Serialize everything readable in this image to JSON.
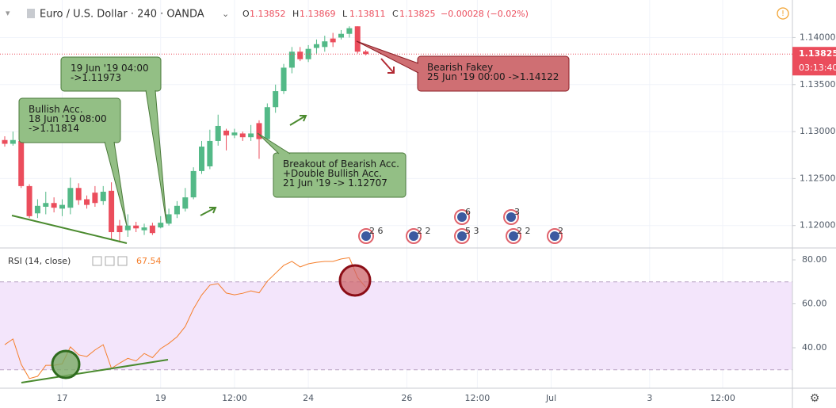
{
  "header": {
    "title": "Euro / U.S. Dollar · 240 · OANDA",
    "ohlc": [
      {
        "key": "O",
        "value": "1.13852"
      },
      {
        "key": "H",
        "value": "1.13869"
      },
      {
        "key": "L",
        "value": "1.13811"
      },
      {
        "key": "C",
        "value": "1.13825"
      }
    ],
    "change": "−0.00028 (−0.02%)"
  },
  "chart_data": [
    {
      "type": "candlestick",
      "up_color": "#53b987",
      "down_color": "#eb4d5c",
      "open": [
        1.1291,
        1.1287,
        1.129,
        1.1242,
        1.1213,
        1.122,
        1.1224,
        1.1218,
        1.1219,
        1.124,
        1.1228,
        1.1235,
        1.1226,
        1.1237,
        1.12,
        1.1195,
        1.12,
        1.1195,
        1.12,
        1.1198,
        1.1202,
        1.1212,
        1.1218,
        1.123,
        1.1258,
        1.1263,
        1.129,
        1.1301,
        1.1296,
        1.1298,
        1.1294,
        1.1309,
        1.1292,
        1.1326,
        1.1343,
        1.1368,
        1.1385,
        1.1377,
        1.1389,
        1.139,
        1.1399,
        1.14,
        1.1404,
        1.1412,
        1.13852
      ],
      "high": [
        1.1295,
        1.13,
        1.1292,
        1.1244,
        1.1228,
        1.1236,
        1.123,
        1.1228,
        1.1251,
        1.1245,
        1.1232,
        1.1242,
        1.1242,
        1.1246,
        1.1206,
        1.1212,
        1.1204,
        1.1202,
        1.1203,
        1.121,
        1.1218,
        1.1226,
        1.124,
        1.1262,
        1.129,
        1.1302,
        1.1318,
        1.1303,
        1.1303,
        1.13,
        1.1307,
        1.1312,
        1.133,
        1.135,
        1.1372,
        1.139,
        1.139,
        1.1392,
        1.1398,
        1.1402,
        1.1405,
        1.1408,
        1.1412,
        1.1412,
        1.13869
      ],
      "low": [
        1.1284,
        1.1285,
        1.124,
        1.1208,
        1.1208,
        1.1212,
        1.1214,
        1.121,
        1.1212,
        1.1222,
        1.1218,
        1.122,
        1.1222,
        1.1185,
        1.1182,
        1.1188,
        1.1193,
        1.119,
        1.119,
        1.1197,
        1.12,
        1.1208,
        1.1215,
        1.1228,
        1.1255,
        1.126,
        1.1285,
        1.128,
        1.1293,
        1.129,
        1.129,
        1.1271,
        1.1288,
        1.132,
        1.134,
        1.1362,
        1.1375,
        1.1374,
        1.1383,
        1.1385,
        1.139,
        1.1398,
        1.14,
        1.1383,
        1.13811
      ],
      "close": [
        1.1287,
        1.1291,
        1.1242,
        1.121,
        1.1221,
        1.1224,
        1.1219,
        1.1222,
        1.124,
        1.1227,
        1.1222,
        1.1224,
        1.1236,
        1.1193,
        1.1193,
        1.12,
        1.1197,
        1.1198,
        1.1192,
        1.1203,
        1.1212,
        1.1221,
        1.123,
        1.1258,
        1.1284,
        1.129,
        1.1306,
        1.1296,
        1.1299,
        1.1294,
        1.1298,
        1.1292,
        1.1326,
        1.1343,
        1.1368,
        1.1385,
        1.1377,
        1.1388,
        1.1393,
        1.1396,
        1.1395,
        1.1404,
        1.141,
        1.1385,
        1.13825
      ],
      "xlim": [
        -0.58,
        96.0
      ],
      "xticks": [
        {
          "value": 7,
          "label": "17"
        },
        {
          "value": 19,
          "label": "19"
        },
        {
          "value": 28,
          "label": "12:00"
        },
        {
          "value": 37,
          "label": "24"
        },
        {
          "value": 49,
          "label": "26"
        },
        {
          "value": 57.6,
          "label": "12:00"
        },
        {
          "value": 66.6,
          "label": "Jul"
        },
        {
          "value": 78.6,
          "label": "3"
        },
        {
          "value": 87.5,
          "label": "12:00"
        }
      ],
      "ylim": [
        1.1177,
        1.144
      ],
      "yticks": [
        {
          "value": 1.12,
          "label": "1.12000"
        },
        {
          "value": 1.125,
          "label": "1.12500"
        },
        {
          "value": 1.13,
          "label": "1.13000"
        },
        {
          "value": 1.135,
          "label": "1.13500"
        },
        {
          "value": 1.14,
          "label": "1.14000"
        }
      ],
      "last_price_label": "1.13825",
      "countdown": "03:13:40",
      "annotations": [
        {
          "lines": [
            "Bullish Acc.",
            "18 Jun '19 08:00",
            "->1.11814"
          ],
          "color": "#93bf85"
        },
        {
          "lines": [
            "19 Jun '19 04:00",
            "->1.11973"
          ],
          "color": "#93bf85"
        },
        {
          "lines": [
            "Breakout of Bearish Acc.",
            "+Double Bullish Acc.",
            "21 Jun '19 -> 1.12707"
          ],
          "color": "#93bf85"
        },
        {
          "lines": [
            "Bearish Fakey",
            "25 Jun '19 00:00 ->1.14122"
          ],
          "color": "#cf6f73"
        }
      ],
      "events": [
        "2 6",
        "2 2",
        "6",
        "5 3",
        "3",
        "2 2",
        "2"
      ]
    },
    {
      "type": "line",
      "title": "RSI (14, close)",
      "current_label": "67.54",
      "color": "#f57f2c",
      "values": [
        41.4,
        44,
        32.5,
        26,
        27,
        32,
        32,
        32.7,
        40.4,
        36.8,
        36,
        39,
        41.4,
        30.6,
        33,
        35.2,
        34,
        37.4,
        35.5,
        39.6,
        42,
        45,
        49.7,
        57.7,
        64,
        68.5,
        69.2,
        64.9,
        64.1,
        64.8,
        65.9,
        65,
        70.3,
        73.9,
        77.5,
        79.3,
        76.8,
        78.2,
        78.9,
        79.3,
        79.3,
        80.4,
        81,
        72,
        67.54
      ],
      "ylim": [
        21.6,
        84.7
      ],
      "yticks": [
        {
          "value": 40,
          "label": "40.00"
        },
        {
          "value": 60,
          "label": "60.00"
        },
        {
          "value": 80,
          "label": "80.00"
        }
      ],
      "bands": [
        30,
        70
      ],
      "band_color": "#f3e5fb"
    }
  ]
}
